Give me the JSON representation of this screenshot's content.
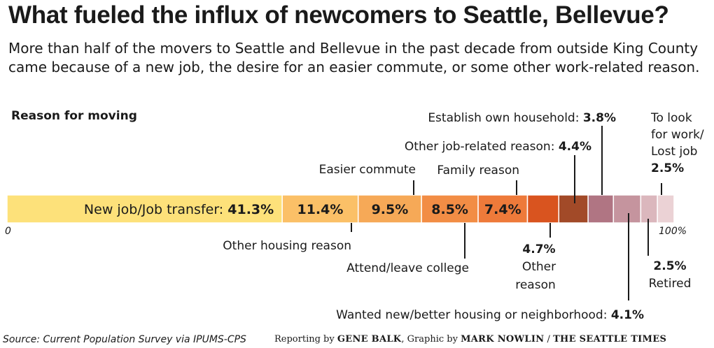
{
  "title": "What fueled the influx of newcomers to Seattle, Bellevue?",
  "subtitle": "More than half of the movers to Seattle and Bellevue in the past decade from outside King County came because of a new job, the desire for an easier commute, or some other work-related reason.",
  "section_label": "Reason for moving",
  "footer": {
    "source": "Source: Current Population Survey via IPUMS-CPS",
    "reporting_prefix": "Reporting by ",
    "reporter": "GENE BALK",
    "graphic_prefix": ", Graphic by ",
    "artist": "MARK NOWLIN",
    "separator": " / ",
    "publication": "THE SEATTLE TIMES"
  },
  "chart_data": {
    "type": "bar",
    "orientation": "horizontal-stacked",
    "xlim": [
      0,
      100
    ],
    "axis_labels": {
      "min": "0",
      "max": "100%"
    },
    "segments": [
      {
        "name": "New job/Job transfer",
        "value": 41.3,
        "value_label": "41.3%",
        "color": "#fde17a",
        "inside_label": "New job/Job transfer: ",
        "callout": ""
      },
      {
        "name": "Other housing reason",
        "value": 11.4,
        "value_label": "11.4%",
        "color": "#fbc067",
        "inside_label": "",
        "callout": "Other housing reason"
      },
      {
        "name": "Easier commute",
        "value": 9.5,
        "value_label": "9.5%",
        "color": "#f6a957",
        "inside_label": "",
        "callout": "Easier commute"
      },
      {
        "name": "Attend/leave college",
        "value": 8.5,
        "value_label": "8.5%",
        "color": "#f28d45",
        "inside_label": "",
        "callout": "Attend/leave college"
      },
      {
        "name": "Family reason",
        "value": 7.4,
        "value_label": "7.4%",
        "color": "#ee7a3a",
        "inside_label": "",
        "callout": "Family reason"
      },
      {
        "name": "Other reason",
        "value": 4.7,
        "value_label": "4.7%",
        "color": "#d9541f",
        "inside_label": "",
        "callout": [
          "Other",
          "reason"
        ]
      },
      {
        "name": "Other job-related reason",
        "value": 4.4,
        "value_label": "4.4%",
        "color": "#a24a28",
        "inside_label": "",
        "callout": "Other job-related reason: "
      },
      {
        "name": "Establish own household",
        "value": 3.8,
        "value_label": "3.8%",
        "color": "#b07583",
        "inside_label": "",
        "callout": "Establish own household: "
      },
      {
        "name": "Wanted new/better housing or neighborhood",
        "value": 4.1,
        "value_label": "4.1%",
        "color": "#c5949e",
        "inside_label": "",
        "callout": "Wanted new/better housing or neighborhood: "
      },
      {
        "name": "Retired",
        "value": 2.5,
        "value_label": "2.5%",
        "color": "#dbb7bd",
        "inside_label": "",
        "callout": "Retired"
      },
      {
        "name": "To look for work/Lost job",
        "value": 2.5,
        "value_label": "2.5%",
        "color": "#ebd2d5",
        "inside_label": "",
        "callout": [
          "To look",
          "for work/",
          "Lost job"
        ]
      }
    ]
  }
}
